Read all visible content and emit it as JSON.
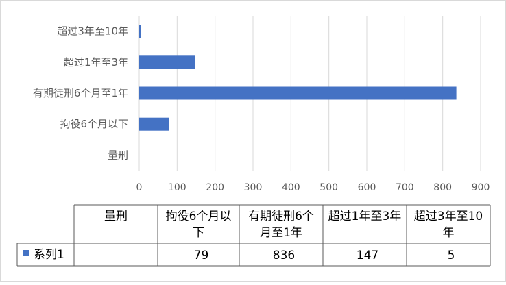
{
  "chart_data": {
    "type": "bar",
    "orientation": "horizontal",
    "title": "",
    "xlabel": "",
    "ylabel": "",
    "categories": [
      "量刑",
      "拘役6个月以下",
      "有期徒刑6个月至1年",
      "超过1年至3年",
      "超过3年至10年"
    ],
    "table_headers": [
      "量刑",
      "拘役6个月以下",
      "有期徒刑6个月至1年",
      "超过1年至3年",
      "超过3年至10年"
    ],
    "series": [
      {
        "name": "系列1",
        "values": [
          null,
          79,
          836,
          147,
          5
        ],
        "color": "#4472c4"
      }
    ],
    "xlim": [
      0,
      900
    ],
    "xticks": [
      0,
      100,
      200,
      300,
      400,
      500,
      600,
      700,
      800,
      900
    ],
    "grid": true,
    "legend": "data-table",
    "data_table": true
  }
}
